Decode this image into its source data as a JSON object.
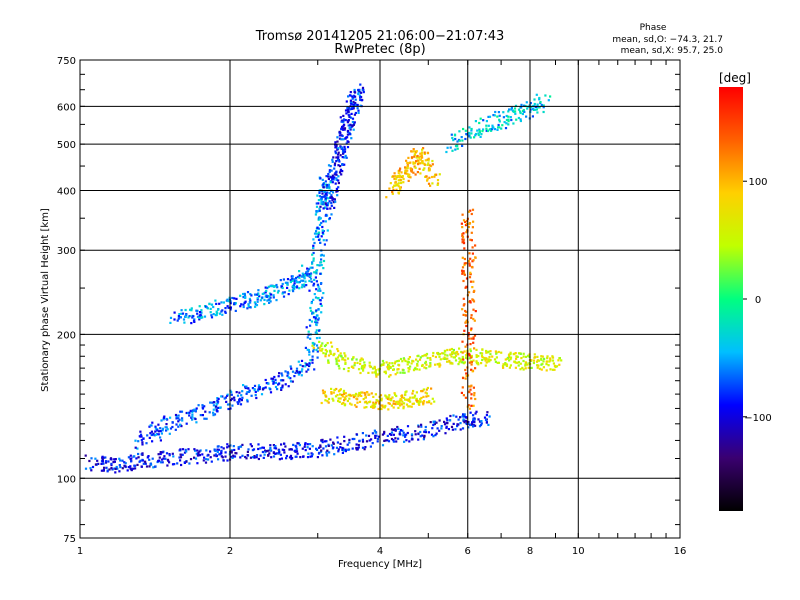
{
  "header": {
    "title_line1": "Tromsø 20141205 21:06:00−21:07:43",
    "title_line2": "RwPretec (8p)",
    "phase_title": "Phase",
    "phase_o": "mean, sd,O: −74.3, 21.7",
    "phase_x": "mean, sd,X:  95.7, 25.0"
  },
  "colorbar": {
    "label": "[deg]",
    "ticks": [
      "100",
      "0",
      "−100"
    ],
    "tick_values": [
      100,
      0,
      -100
    ],
    "range": [
      -180,
      180
    ],
    "colors": [
      "#000000",
      "#3a0070",
      "#0000ff",
      "#00bfff",
      "#00ff80",
      "#c0ff00",
      "#ffd000",
      "#ff6000",
      "#ff0000"
    ]
  },
  "chart_data": {
    "type": "scatter",
    "title": "Tromsø 20141205 21:06:00−21:07:43",
    "subtitle": "RwPretec (8p)",
    "xlabel": "Frequency [MHz]",
    "ylabel": "Stationary phase Virtual Height [km]",
    "xscale": "log",
    "yscale": "log",
    "xlim": [
      1,
      16
    ],
    "ylim": [
      75,
      750
    ],
    "xticks": [
      1,
      2,
      4,
      6,
      8,
      10,
      16
    ],
    "xtick_labels": [
      "1",
      "2",
      "4",
      "6",
      "8",
      "10",
      "16"
    ],
    "yticks": [
      75,
      100,
      200,
      300,
      400,
      500,
      600,
      750
    ],
    "ytick_labels": [
      "75",
      "100",
      "200",
      "300",
      "400",
      "500",
      "600",
      "750"
    ],
    "grid": true,
    "traces": [
      {
        "x": [
          1.05,
          1.2,
          1.4,
          1.7,
          2.0,
          2.4,
          2.8,
          3.3,
          4.0,
          4.8,
          5.8,
          6.5
        ],
        "y": [
          108,
          107,
          110,
          112,
          114,
          114,
          115,
          118,
          122,
          126,
          132,
          135
        ],
        "phase": -90
      },
      {
        "x": [
          1.3,
          1.5,
          1.8,
          2.1,
          2.5,
          2.9
        ],
        "y": [
          120,
          130,
          140,
          150,
          160,
          175
        ],
        "phase": -75
      },
      {
        "x": [
          1.55,
          1.8,
          2.1,
          2.4,
          2.7,
          2.9
        ],
        "y": [
          218,
          225,
          235,
          245,
          258,
          272
        ],
        "phase": -60
      },
      {
        "x": [
          2.9,
          2.95,
          3.0,
          3.05,
          3.1
        ],
        "y": [
          180,
          230,
          300,
          380,
          420
        ],
        "phase": -55
      },
      {
        "x": [
          3.1,
          3.2,
          3.3,
          3.4,
          3.5,
          3.6
        ],
        "y": [
          360,
          420,
          480,
          540,
          600,
          650
        ],
        "phase": -85
      },
      {
        "x": [
          3.0,
          3.4,
          4.0,
          4.6,
          5.3,
          6.0,
          7.0,
          8.0,
          9.0
        ],
        "y": [
          190,
          175,
          170,
          175,
          180,
          182,
          178,
          176,
          175
        ],
        "phase": 60
      },
      {
        "x": [
          3.1,
          3.5,
          4.0,
          4.5,
          5.0
        ],
        "y": [
          150,
          148,
          145,
          146,
          150
        ],
        "phase": 80
      },
      {
        "x": [
          4.2,
          4.5,
          4.8,
          5.1
        ],
        "y": [
          400,
          440,
          480,
          420
        ],
        "phase": 95
      },
      {
        "x": [
          5.5,
          6.5,
          7.5,
          8.5
        ],
        "y": [
          500,
          550,
          580,
          620
        ],
        "phase": -40
      },
      {
        "x": [
          6.0,
          6.0,
          6.0,
          6.0
        ],
        "y": [
          140,
          200,
          280,
          360
        ],
        "phase": 130
      }
    ]
  }
}
